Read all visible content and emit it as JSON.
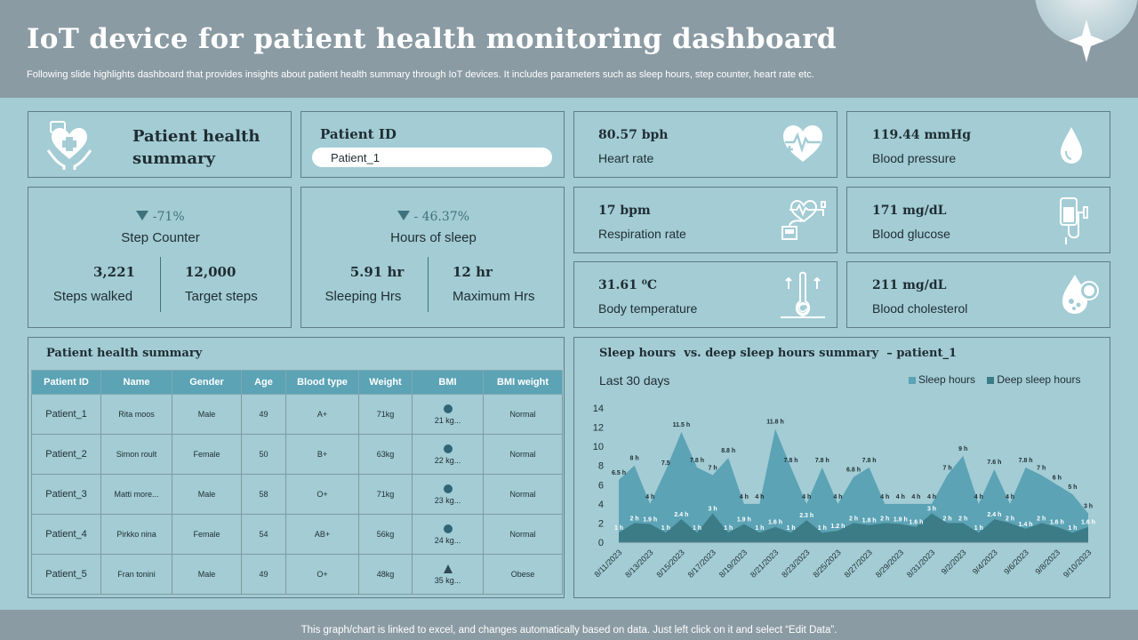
{
  "header": {
    "title": "IoT device for patient health monitoring dashboard",
    "subtitle": "Following slide highlights dashboard that provides insights about patient health summary through IoT devices. It includes parameters such as sleep hours, step counter, heart rate etc."
  },
  "summary_card": {
    "icon": "heart-in-hands-icon",
    "title_line1": "Patient health",
    "title_line2": "summary"
  },
  "patient_id": {
    "label": "Patient ID",
    "value": "Patient_1"
  },
  "steps": {
    "percent": "-71%",
    "title": "Step Counter",
    "walked_value": "3,221",
    "walked_label": "Steps walked",
    "target_value": "12,000",
    "target_label": "Target steps"
  },
  "sleep": {
    "percent": "- 46.37%",
    "title": "Hours of sleep",
    "sleeping_value": "5.91 hr",
    "sleeping_label": "Sleeping Hrs",
    "max_value": "12 hr",
    "max_label": "Maximum Hrs"
  },
  "vitals": [
    {
      "value": "80.57 bph",
      "label": "Heart rate",
      "icon": "heart-pulse-icon"
    },
    {
      "value": "119.44 mmHg",
      "label": "Blood pressure",
      "icon": "blood-drop-icon"
    },
    {
      "value": "17 bpm",
      "label": "Respiration rate",
      "icon": "ecg-monitor-icon"
    },
    {
      "value": "171 mg/dL",
      "label": "Blood glucose",
      "icon": "iv-bag-icon"
    },
    {
      "value": "31.61 ⁰C",
      "label": "Body temperature",
      "icon": "thermometer-icon"
    },
    {
      "value": "211 mg/dL",
      "label": "Blood cholesterol",
      "icon": "cholesterol-drop-icon"
    }
  ],
  "table": {
    "title": "Patient health summary",
    "columns": [
      "Patient ID",
      "Name",
      "Gender",
      "Age",
      "Blood type",
      "Weight",
      "BMI",
      "BMI weight"
    ],
    "rows": [
      {
        "id": "Patient_1",
        "name": "Rita moos",
        "gender": "Male",
        "age": "49",
        "blood": "A+",
        "weight": "71kg",
        "bmi": "21 kg...",
        "bmi_icon": "circle",
        "bmi_weight": "Normal"
      },
      {
        "id": "Patient_2",
        "name": "Simon roult",
        "gender": "Female",
        "age": "50",
        "blood": "B+",
        "weight": "63kg",
        "bmi": "22 kg...",
        "bmi_icon": "circle",
        "bmi_weight": "Normal"
      },
      {
        "id": "Patient_3",
        "name": "Matti more...",
        "gender": "Male",
        "age": "58",
        "blood": "O+",
        "weight": "71kg",
        "bmi": "23 kg...",
        "bmi_icon": "circle",
        "bmi_weight": "Normal"
      },
      {
        "id": "Patient_4",
        "name": "Pirkko nina",
        "gender": "Female",
        "age": "54",
        "blood": "AB+",
        "weight": "56kg",
        "bmi": "24 kg...",
        "bmi_icon": "circle",
        "bmi_weight": "Normal"
      },
      {
        "id": "Patient_5",
        "name": "Fran tonini",
        "gender": "Male",
        "age": "49",
        "blood": "O+",
        "weight": "48kg",
        "bmi": "35 kg...",
        "bmi_icon": "triangle",
        "bmi_weight": "Obese"
      }
    ]
  },
  "chart_title": "Sleep hours  vs. deep sleep hours summary  – patient_1",
  "chart_data": {
    "type": "area",
    "subtitle": "Last 30 days",
    "x": [
      "8/11/2023",
      "8/12/2023",
      "8/13/2023",
      "8/14/2023",
      "8/15/2023",
      "8/16/2023",
      "8/17/2023",
      "8/18/2023",
      "8/19/2023",
      "8/20/2023",
      "8/21/2023",
      "8/22/2023",
      "8/23/2023",
      "8/24/2023",
      "8/25/2023",
      "8/26/2023",
      "8/27/2023",
      "8/28/2023",
      "8/29/2023",
      "8/30/2023",
      "8/31/2023",
      "9/1/2023",
      "9/2/2023",
      "9/3/2023",
      "9/4/2023",
      "9/5/2023",
      "9/6/2023",
      "9/7/2023",
      "9/8/2023",
      "9/9/2023",
      "9/10/2023"
    ],
    "tick_labels": [
      "8/11/2023",
      "8/13/2023",
      "8/15/2023",
      "8/17/2023",
      "8/19/2023",
      "8/21/2023",
      "8/23/2023",
      "8/25/2023",
      "8/27/2023",
      "8/29/2023",
      "8/31/2023",
      "9/2/2023",
      "9/4/2023",
      "9/6/2023",
      "9/8/2023",
      "9/10/2023"
    ],
    "series": [
      {
        "name": "Sleep hours",
        "color": "#5ba3b5",
        "values": [
          6.5,
          8,
          4,
          7.5,
          11.5,
          7.8,
          7,
          8.8,
          4,
          4,
          11.8,
          7.8,
          4,
          7.8,
          4,
          6.8,
          7.8,
          4,
          4,
          4,
          4,
          7,
          9,
          4,
          7.6,
          4,
          7.8,
          7,
          6,
          5,
          3
        ],
        "labels": [
          "6.5 h",
          "8 h",
          "4 h",
          "7.5",
          "11.5 h",
          "7.8 h",
          "7 h",
          "8.8 h",
          "4 h",
          "4 h",
          "11.8 h",
          "7.8 h",
          "4 h",
          "7.8 h",
          "4 h",
          "6.8 h",
          "7.8 h",
          "4 h",
          "4 h",
          "4 h",
          "4 h",
          "7 h",
          "9 h",
          "4 h",
          "7.6 h",
          "4 h",
          "7.8 h",
          "7 h",
          "6 h",
          "5 h",
          "3 h"
        ]
      },
      {
        "name": "Deep sleep hours",
        "color": "#3c7c87",
        "values": [
          1,
          2,
          1.9,
          1,
          2.4,
          1,
          3,
          1,
          1.9,
          1,
          1.6,
          1,
          2.3,
          1,
          1.2,
          2,
          1.8,
          2,
          1.9,
          1.6,
          3,
          2,
          2,
          1,
          2.4,
          2,
          1.4,
          2,
          1.6,
          1,
          1.6
        ],
        "labels": [
          "1 h",
          "2 h",
          "1.9 h",
          "1 h",
          "2.4 h",
          "1 h",
          "3 h",
          "1 h",
          "1.9 h",
          "1 h",
          "1.6 h",
          "1 h",
          "2.3 h",
          "1 h",
          "1.2 h",
          "2 h",
          "1.8 h",
          "2 h",
          "1.9 h",
          "1.6 h",
          "3 h",
          "2 h",
          "2 h",
          "1 h",
          "2.4 h",
          "2 h",
          "1.4 h",
          "2 h",
          "1.6 h",
          "1 h",
          "1.6 h"
        ]
      }
    ],
    "y_ticks": [
      "0",
      "2",
      "4",
      "6",
      "8",
      "10",
      "12",
      "14"
    ],
    "ylim": [
      0,
      14
    ],
    "legend_position": "top-right"
  },
  "footer": {
    "text": "This graph/chart is linked to excel,  and changes automatically based on data. Just left click on it and select “Edit Data”."
  }
}
